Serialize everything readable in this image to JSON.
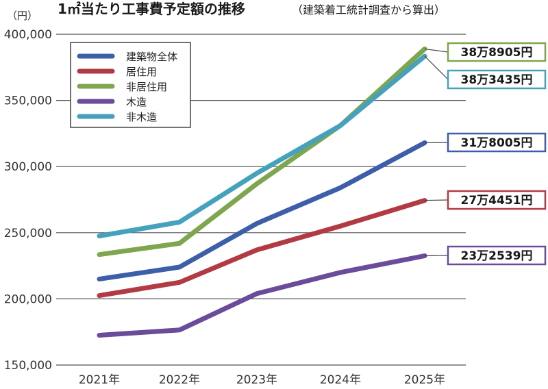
{
  "title": "1㎡当たり工事費予定額の推移",
  "subtitle": "（建築着工統計調査から算出）",
  "unit_label": "（円）",
  "chart_data": {
    "type": "line",
    "title": "1㎡当たり工事費予定額の推移",
    "subtitle": "（建築着工統計調査から算出）",
    "ylabel": "（円）",
    "xlabel": "",
    "ylim": [
      150000,
      400000
    ],
    "yticks": [
      150000,
      200000,
      250000,
      300000,
      350000,
      400000
    ],
    "ytick_labels": [
      "150,000",
      "200,000",
      "250,000",
      "300,000",
      "350,000",
      "400,000"
    ],
    "categories": [
      "2021年",
      "2022年",
      "2023年",
      "2024年",
      "2025年"
    ],
    "grid": true,
    "legend_position": "top-left",
    "series": [
      {
        "name": "建築物全体",
        "color": "#3d5ea8",
        "values": [
          215000,
          224000,
          257000,
          284000,
          318005
        ],
        "end_label": "31万8005円"
      },
      {
        "name": "居住用",
        "color": "#b23a44",
        "values": [
          202500,
          212500,
          237000,
          255000,
          274451
        ],
        "end_label": "27万4451円"
      },
      {
        "name": "非居住用",
        "color": "#7ea64e",
        "values": [
          233500,
          242000,
          287000,
          331000,
          388905
        ],
        "end_label": "38万8905円"
      },
      {
        "name": "木造",
        "color": "#6b4c9a",
        "values": [
          172500,
          176500,
          204000,
          220000,
          232539
        ],
        "end_label": "23万2539円"
      },
      {
        "name": "非木造",
        "color": "#46a1bd",
        "values": [
          247500,
          258000,
          295000,
          331000,
          383435
        ],
        "end_label": "38万3435円"
      }
    ]
  }
}
